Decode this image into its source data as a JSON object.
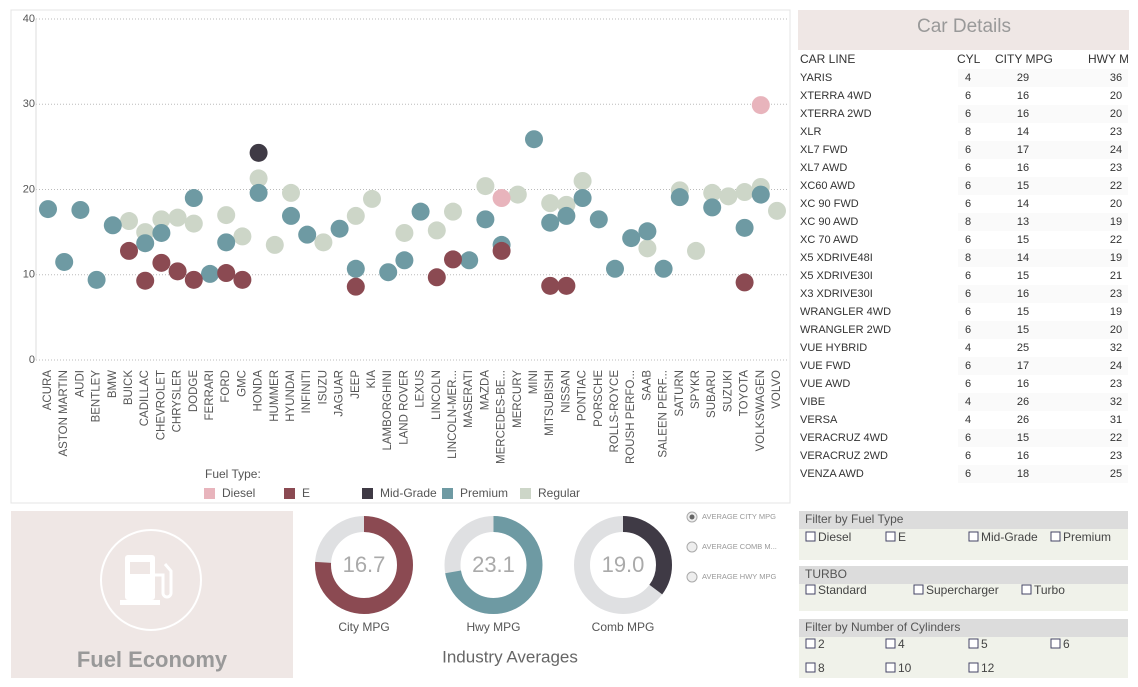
{
  "chart_data": [
    {
      "type": "dot",
      "categories": [
        "ACURA",
        "ASTON MARTIN",
        "AUDI",
        "BENTLEY",
        "BMW",
        "BUICK",
        "CADILLAC",
        "CHEVROLET",
        "CHRYSLER",
        "DODGE",
        "FERRARI",
        "FORD",
        "GMC",
        "HONDA",
        "HUMMER",
        "HYUNDAI",
        "INFINITI",
        "ISUZU",
        "JAGUAR",
        "JEEP",
        "KIA",
        "LAMBORGHINI",
        "LAND ROVER",
        "LEXUS",
        "LINCOLN",
        "LINCOLN-MER...",
        "MASERATI",
        "MAZDA",
        "MERCEDES-BE...",
        "MERCURY",
        "MINI",
        "MITSUBISHI",
        "NISSAN",
        "PONTIAC",
        "PORSCHE",
        "ROLLS-ROYCE",
        "ROUSH PERFO...",
        "SAAB",
        "SALEEN PERF...",
        "SATURN",
        "SPYKR",
        "SUBARU",
        "SUZUKI",
        "TOYOTA",
        "VOLKSWAGEN",
        "VOLVO"
      ],
      "legend_title": "Fuel Type:",
      "series": [
        {
          "name": "Diesel",
          "color": "#e8b4bc",
          "values": [
            null,
            null,
            null,
            null,
            null,
            null,
            null,
            null,
            null,
            null,
            null,
            null,
            null,
            null,
            null,
            null,
            null,
            null,
            null,
            null,
            null,
            null,
            null,
            null,
            null,
            null,
            null,
            null,
            19,
            null,
            null,
            null,
            null,
            null,
            null,
            null,
            null,
            null,
            null,
            null,
            null,
            null,
            null,
            null,
            29.9,
            null
          ]
        },
        {
          "name": "E",
          "color": "#8b4a52",
          "values": [
            null,
            null,
            null,
            null,
            null,
            12.8,
            9.3,
            11.4,
            10.4,
            9.4,
            null,
            10.2,
            9.4,
            null,
            null,
            null,
            null,
            null,
            null,
            8.6,
            null,
            null,
            null,
            null,
            9.7,
            11.8,
            null,
            null,
            12.8,
            null,
            null,
            8.7,
            8.7,
            null,
            null,
            null,
            null,
            null,
            null,
            null,
            null,
            null,
            null,
            9.1,
            null,
            null
          ]
        },
        {
          "name": "Mid-Grade",
          "color": "#3f3a45",
          "values": [
            null,
            null,
            null,
            null,
            null,
            null,
            null,
            null,
            null,
            null,
            null,
            null,
            null,
            24.3,
            null,
            null,
            null,
            null,
            null,
            null,
            null,
            null,
            null,
            null,
            null,
            null,
            null,
            null,
            null,
            null,
            null,
            null,
            null,
            null,
            null,
            null,
            null,
            null,
            null,
            null,
            null,
            null,
            null,
            null,
            null,
            null
          ]
        },
        {
          "name": "Premium",
          "color": "#6e9aa3",
          "values": [
            17.7,
            11.5,
            17.6,
            9.4,
            15.8,
            null,
            13.7,
            14.9,
            null,
            19,
            10.1,
            13.8,
            null,
            19.6,
            null,
            16.9,
            14.7,
            null,
            15.4,
            10.7,
            null,
            10.3,
            11.7,
            17.4,
            null,
            null,
            11.7,
            16.5,
            13.5,
            null,
            25.9,
            16.1,
            16.9,
            19,
            16.5,
            10.7,
            14.3,
            15.1,
            10.7,
            19.1,
            null,
            17.9,
            null,
            15.5,
            19.4,
            null
          ]
        },
        {
          "name": "Regular",
          "color": "#cdd6c8",
          "values": [
            null,
            null,
            null,
            null,
            null,
            16.3,
            15,
            16.5,
            16.7,
            16,
            null,
            17,
            14.5,
            21.3,
            13.5,
            19.6,
            null,
            13.8,
            null,
            16.9,
            18.9,
            null,
            14.9,
            null,
            15.2,
            17.4,
            null,
            20.4,
            null,
            19.4,
            null,
            18.4,
            18.2,
            21,
            null,
            null,
            null,
            13.1,
            null,
            19.9,
            12.8,
            19.6,
            19.2,
            19.7,
            20.3,
            17.5
          ]
        }
      ],
      "ylim": [
        0,
        40
      ],
      "yticks": [
        0,
        10,
        20,
        30,
        40
      ],
      "grid": true
    },
    {
      "type": "donut",
      "title": "City MPG",
      "values": [
        16.7
      ],
      "color": "#8b4a52",
      "ylim": [
        0,
        22
      ]
    },
    {
      "type": "donut",
      "title": "Hwy MPG",
      "values": [
        23.1
      ],
      "color": "#6e9aa3",
      "ylim": [
        0,
        32
      ]
    },
    {
      "type": "donut",
      "title": "Comb MPG",
      "values": [
        19
      ],
      "value_labels": [
        "19.0"
      ],
      "color": "#3f3a45",
      "ylim": [
        0,
        54
      ]
    }
  ],
  "averages_title": "Industry Averages",
  "panel": {
    "title": "Fuel Economy"
  },
  "average_options": {
    "options": [
      "AVERAGE CITY MPG",
      "AVERAGE COMB M...",
      "AVERAGE HWY MPG"
    ],
    "selected": 0
  },
  "table": {
    "title": "Car Details",
    "columns": [
      "CAR LINE",
      "CYL",
      "CITY MPG",
      "HWY MPG"
    ],
    "rows": [
      [
        "YARIS",
        "4",
        "29",
        "36"
      ],
      [
        "XTERRA 4WD",
        "6",
        "16",
        "20"
      ],
      [
        "XTERRA 2WD",
        "6",
        "16",
        "20"
      ],
      [
        "XLR",
        "8",
        "14",
        "23"
      ],
      [
        "XL7 FWD",
        "6",
        "17",
        "24"
      ],
      [
        "XL7 AWD",
        "6",
        "16",
        "23"
      ],
      [
        "XC60 AWD",
        "6",
        "15",
        "22"
      ],
      [
        "XC 90 FWD",
        "6",
        "14",
        "20"
      ],
      [
        "XC 90 AWD",
        "8",
        "13",
        "19"
      ],
      [
        "XC 70 AWD",
        "6",
        "15",
        "22"
      ],
      [
        "X5 XDRIVE48I",
        "8",
        "14",
        "19"
      ],
      [
        "X5 XDRIVE30I",
        "6",
        "15",
        "21"
      ],
      [
        "X3 XDRIVE30I",
        "6",
        "16",
        "23"
      ],
      [
        "WRANGLER 4WD",
        "6",
        "15",
        "19"
      ],
      [
        "WRANGLER 2WD",
        "6",
        "15",
        "20"
      ],
      [
        "VUE HYBRID",
        "4",
        "25",
        "32"
      ],
      [
        "VUE FWD",
        "6",
        "17",
        "24"
      ],
      [
        "VUE AWD",
        "6",
        "16",
        "23"
      ],
      [
        "VIBE",
        "4",
        "26",
        "32"
      ],
      [
        "VERSA",
        "4",
        "26",
        "31"
      ],
      [
        "VERACRUZ 4WD",
        "6",
        "15",
        "22"
      ],
      [
        "VERACRUZ 2WD",
        "6",
        "16",
        "23"
      ],
      [
        "VENZA AWD",
        "6",
        "18",
        "25"
      ]
    ]
  },
  "filters": [
    {
      "title": "Filter by Fuel Type",
      "options": [
        "Diesel",
        "E",
        "Mid-Grade",
        "Premium"
      ]
    },
    {
      "title": "TURBO",
      "options": [
        "Standard",
        "Supercharger",
        "Turbo"
      ]
    },
    {
      "title": "Filter by Number of Cylinders",
      "options": [
        "2",
        "4",
        "5",
        "6",
        "8",
        "10",
        "12"
      ]
    }
  ]
}
